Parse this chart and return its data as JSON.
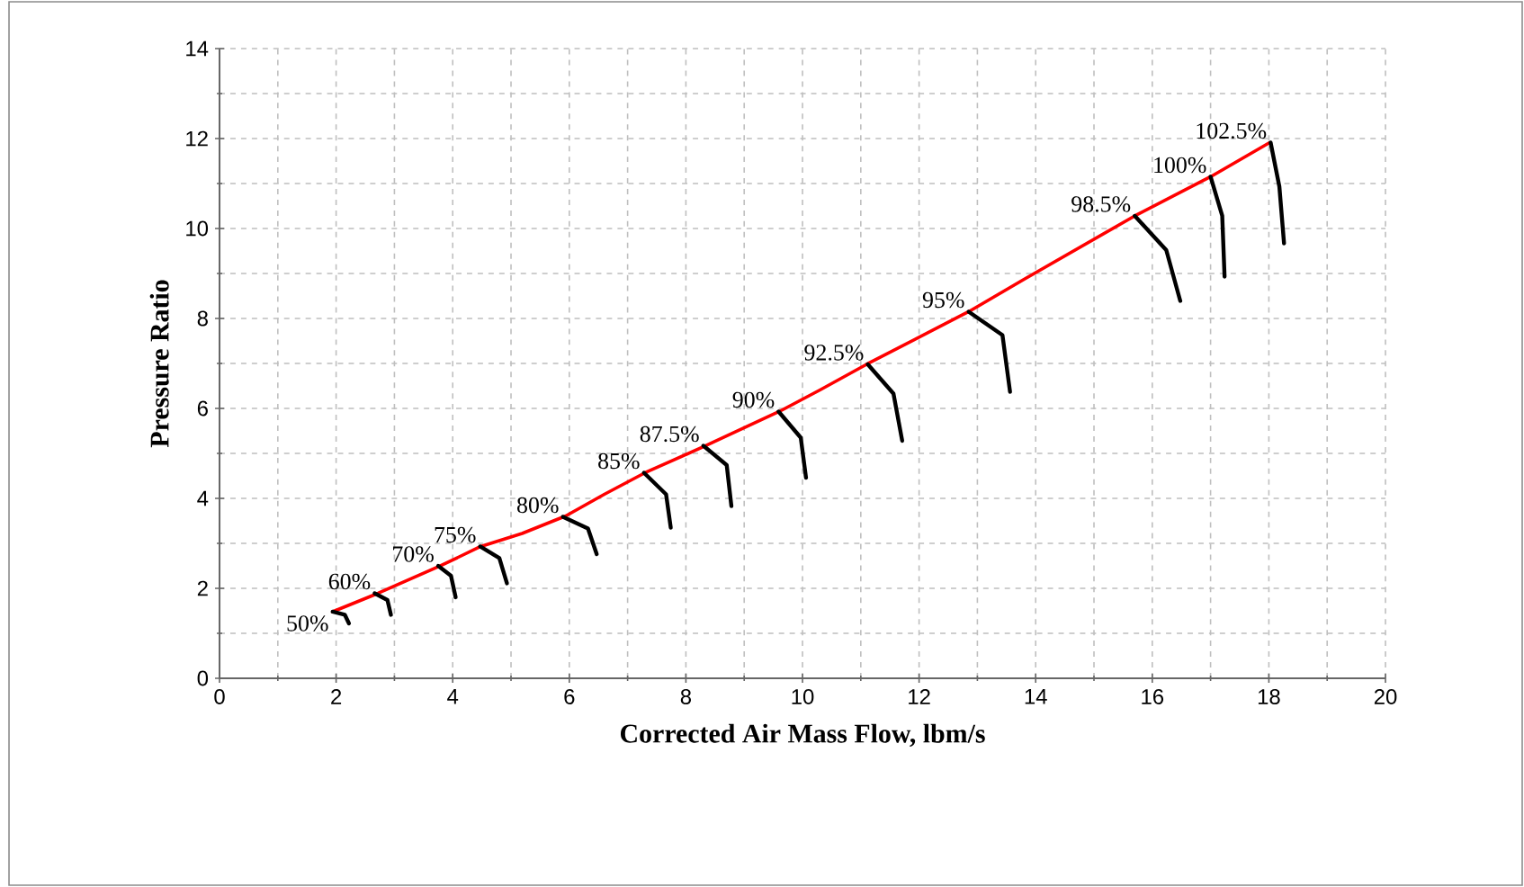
{
  "chart_data": {
    "type": "line",
    "xlabel": "Corrected  Air Mass Flow, lbm/s",
    "ylabel": "Pressure Ratio",
    "xlim": [
      0,
      20
    ],
    "xticks": [
      0,
      2,
      4,
      6,
      8,
      10,
      12,
      14,
      16,
      18,
      20
    ],
    "ylim": [
      0,
      14
    ],
    "yticks": [
      0,
      2,
      4,
      6,
      8,
      10,
      12,
      14
    ],
    "grid": true,
    "marker": "none",
    "line_style": "solid",
    "series": [
      {
        "color": "#ff0000",
        "x": [
          1.94,
          2.72,
          3.79,
          4.48,
          5.19,
          5.94,
          6.6,
          7.3,
          8.34,
          9.6,
          10.3,
          11.1,
          12.85,
          13.8,
          15.7,
          17.0,
          18.0
        ],
        "values": [
          1.48,
          1.89,
          2.5,
          2.93,
          3.22,
          3.61,
          4.09,
          4.57,
          5.17,
          5.93,
          6.41,
          6.98,
          8.15,
          8.87,
          10.28,
          11.15,
          11.9
        ]
      },
      {
        "name": "50%",
        "color": "#000000",
        "x": [
          1.94,
          2.15,
          2.22
        ],
        "values": [
          1.48,
          1.41,
          1.22
        ]
      },
      {
        "name": "60%",
        "color": "#000000",
        "x": [
          2.66,
          2.88,
          2.94
        ],
        "values": [
          1.89,
          1.74,
          1.41
        ]
      },
      {
        "name": "70%",
        "color": "#000000",
        "x": [
          3.75,
          3.97,
          4.05
        ],
        "values": [
          2.5,
          2.28,
          1.8
        ]
      },
      {
        "name": "75%",
        "color": "#000000",
        "x": [
          4.47,
          4.8,
          4.93
        ],
        "values": [
          2.93,
          2.67,
          2.11
        ]
      },
      {
        "name": "80%",
        "color": "#000000",
        "x": [
          5.89,
          6.32,
          6.47
        ],
        "values": [
          3.59,
          3.33,
          2.76
        ]
      },
      {
        "name": "85%",
        "color": "#000000",
        "x": [
          7.28,
          7.66,
          7.74
        ],
        "values": [
          4.57,
          4.09,
          3.35
        ]
      },
      {
        "name": "87.5%",
        "color": "#000000",
        "x": [
          8.3,
          8.7,
          8.78
        ],
        "values": [
          5.17,
          4.74,
          3.83
        ]
      },
      {
        "name": "90%",
        "color": "#000000",
        "x": [
          9.59,
          9.97,
          10.06
        ],
        "values": [
          5.93,
          5.35,
          4.46
        ]
      },
      {
        "name": "92.5%",
        "color": "#000000",
        "x": [
          11.12,
          11.56,
          11.71
        ],
        "values": [
          6.98,
          6.33,
          5.28
        ]
      },
      {
        "name": "95%",
        "color": "#000000",
        "x": [
          12.85,
          13.43,
          13.56
        ],
        "values": [
          8.15,
          7.63,
          6.37
        ]
      },
      {
        "name": "98.5%",
        "color": "#000000",
        "x": [
          15.7,
          16.24,
          16.48
        ],
        "values": [
          10.28,
          9.52,
          8.39
        ]
      },
      {
        "name": "100%",
        "color": "#000000",
        "x": [
          17.0,
          17.2,
          17.24
        ],
        "values": [
          11.15,
          10.28,
          8.93
        ]
      },
      {
        "name": "102.5%",
        "color": "#000000",
        "x": [
          18.03,
          18.18,
          18.26
        ],
        "values": [
          11.91,
          10.93,
          9.67
        ]
      }
    ]
  }
}
